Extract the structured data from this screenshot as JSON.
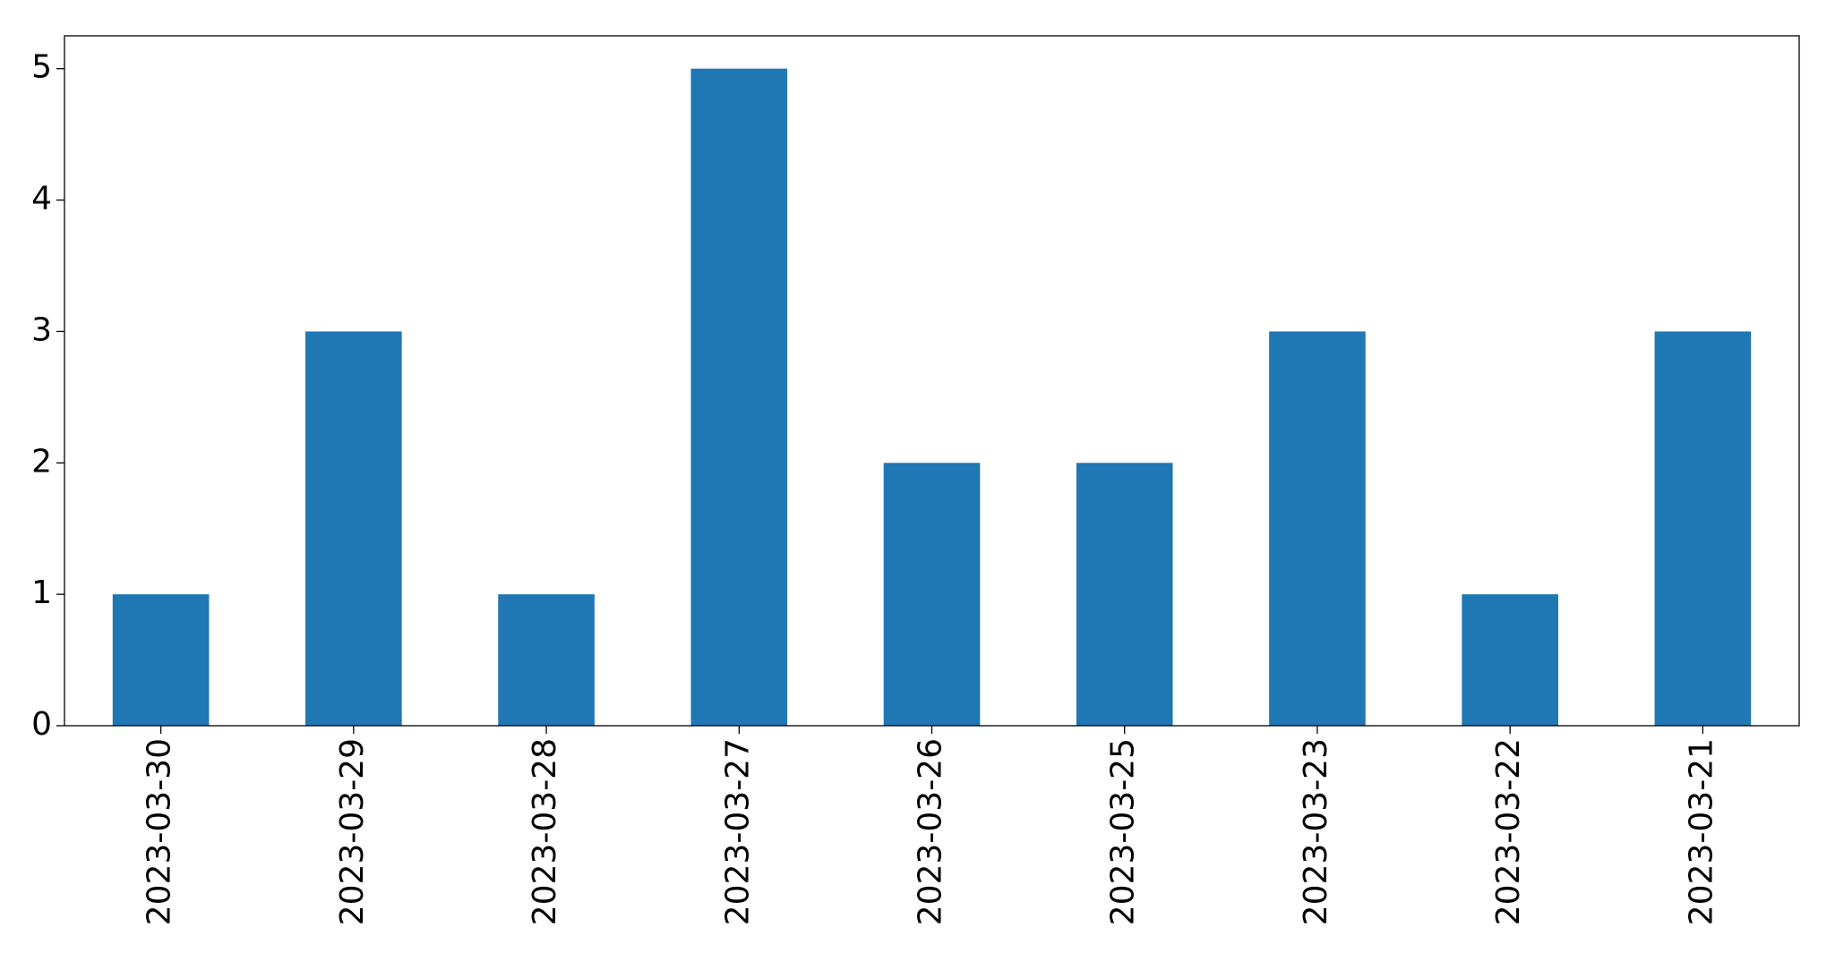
{
  "chart_data": {
    "type": "bar",
    "categories": [
      "2023-03-30",
      "2023-03-29",
      "2023-03-28",
      "2023-03-27",
      "2023-03-26",
      "2023-03-25",
      "2023-03-23",
      "2023-03-22",
      "2023-03-21"
    ],
    "values": [
      1,
      3,
      1,
      5,
      2,
      2,
      3,
      1,
      3
    ],
    "color": "#1f77b4",
    "ylim": [
      0,
      5.25
    ],
    "yticks": [
      0,
      1,
      2,
      3,
      4,
      5
    ],
    "grid": false
  }
}
